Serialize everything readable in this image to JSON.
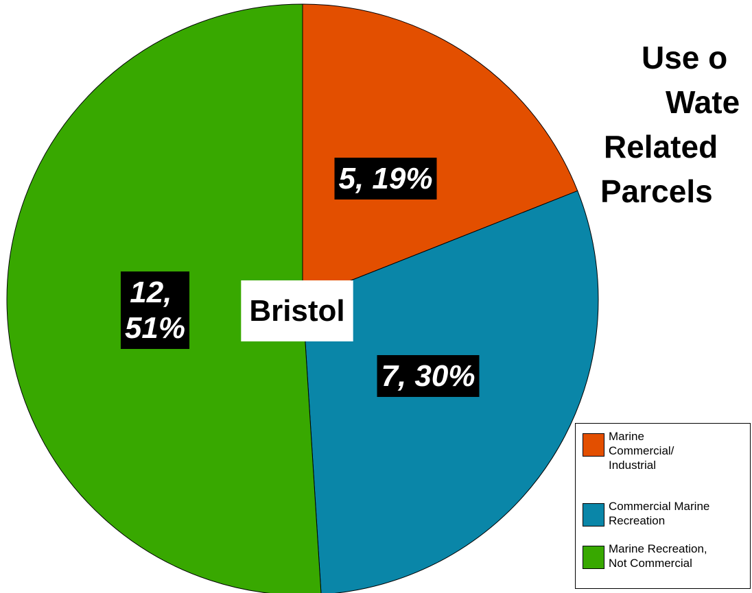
{
  "chart_data": {
    "type": "pie",
    "title": [
      "Use o",
      "Wate",
      "Related",
      "Parcels"
    ],
    "center_label": "Bristol",
    "categories": [
      "Marine Commercial/ Industrial",
      "Commercial Marine Recreation",
      "Marine Recreation, Not Commercial"
    ],
    "counts": [
      5,
      7,
      12
    ],
    "values": [
      19,
      30,
      51
    ],
    "value_labels": [
      "5, 19%",
      "7, 30%",
      "12, 51%"
    ],
    "colors": [
      "#e34f00",
      "#0a86a8",
      "#38a800"
    ]
  }
}
